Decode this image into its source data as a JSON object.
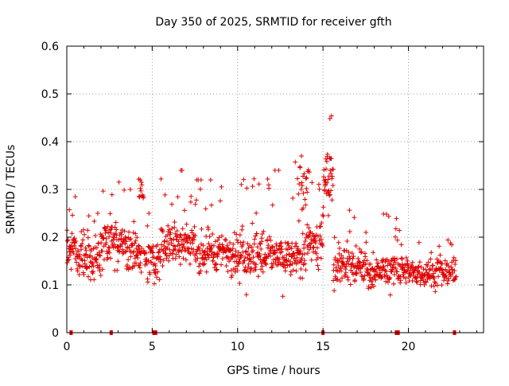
{
  "chart_data": {
    "type": "scatter",
    "title": "Day 350 of 2025, SRMTID for receiver gfth",
    "xlabel": "GPS time / hours",
    "ylabel": "SRMTID / TECUs",
    "xlim": [
      0,
      24.4
    ],
    "ylim": [
      0,
      0.6
    ],
    "x_ticks": [
      "0",
      "5",
      "10",
      "15",
      "20"
    ],
    "x_tick_values": [
      0,
      5,
      10,
      15,
      20
    ],
    "y_ticks": [
      "0",
      "0.1",
      "0.2",
      "0.3",
      "0.4",
      "0.5",
      "0.6"
    ],
    "y_tick_values": [
      0,
      0.1,
      0.2,
      0.3,
      0.4,
      0.5,
      0.6
    ],
    "grid": true,
    "marker": "plus",
    "color": "#e00000",
    "gap_markers_x": [
      0.25,
      2.6,
      5.1,
      5.2,
      15.0,
      19.3,
      19.4,
      22.7
    ],
    "series": [
      {
        "name": "gfth",
        "segments": [
          {
            "x0": 0.0,
            "x1": 0.5,
            "base": 0.18,
            "amp": 0.06,
            "min": 0.08,
            "max": 0.33,
            "n": 30
          },
          {
            "x0": 0.5,
            "x1": 2.0,
            "base": 0.15,
            "amp": 0.05,
            "min": 0.06,
            "max": 0.25,
            "n": 90
          },
          {
            "x0": 2.0,
            "x1": 3.5,
            "base": 0.19,
            "amp": 0.06,
            "min": 0.06,
            "max": 0.32,
            "n": 90
          },
          {
            "x0": 3.5,
            "x1": 4.4,
            "base": 0.17,
            "amp": 0.06,
            "min": 0.06,
            "max": 0.3,
            "n": 55
          },
          {
            "x0": 4.2,
            "x1": 4.5,
            "base": 0.3,
            "amp": 0.05,
            "min": 0.22,
            "max": 0.395,
            "n": 12
          },
          {
            "x0": 4.5,
            "x1": 5.5,
            "base": 0.15,
            "amp": 0.05,
            "min": 0.05,
            "max": 0.25,
            "n": 55
          },
          {
            "x0": 5.5,
            "x1": 7.5,
            "base": 0.19,
            "amp": 0.06,
            "min": 0.05,
            "max": 0.34,
            "n": 120
          },
          {
            "x0": 7.5,
            "x1": 10.0,
            "base": 0.17,
            "amp": 0.06,
            "min": 0.045,
            "max": 0.32,
            "n": 150
          },
          {
            "x0": 10.0,
            "x1": 12.5,
            "base": 0.16,
            "amp": 0.06,
            "min": 0.05,
            "max": 0.34,
            "n": 150
          },
          {
            "x0": 12.5,
            "x1": 14.0,
            "base": 0.16,
            "amp": 0.06,
            "min": 0.06,
            "max": 0.37,
            "n": 90
          },
          {
            "x0": 13.5,
            "x1": 14.2,
            "base": 0.32,
            "amp": 0.06,
            "min": 0.22,
            "max": 0.43,
            "n": 18
          },
          {
            "x0": 14.0,
            "x1": 15.0,
            "base": 0.19,
            "amp": 0.06,
            "min": 0.07,
            "max": 0.32,
            "n": 55
          },
          {
            "x0": 15.0,
            "x1": 15.6,
            "base": 0.33,
            "amp": 0.07,
            "min": 0.2,
            "max": 0.515,
            "n": 40
          },
          {
            "x0": 15.6,
            "x1": 17.5,
            "base": 0.14,
            "amp": 0.05,
            "min": 0.05,
            "max": 0.26,
            "n": 110
          },
          {
            "x0": 17.5,
            "x1": 20.0,
            "base": 0.13,
            "amp": 0.04,
            "min": 0.055,
            "max": 0.25,
            "n": 140
          },
          {
            "x0": 20.0,
            "x1": 22.8,
            "base": 0.125,
            "amp": 0.04,
            "min": 0.04,
            "max": 0.2,
            "n": 150
          }
        ]
      }
    ]
  }
}
